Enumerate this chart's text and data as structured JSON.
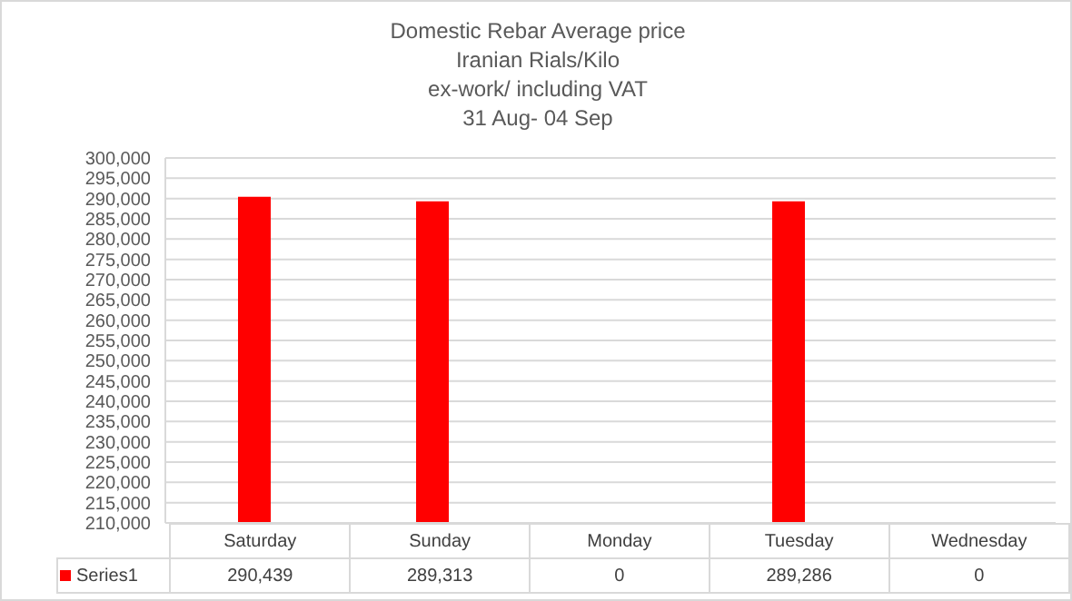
{
  "chart_data": {
    "type": "bar",
    "title": "Domestic Rebar Average  price",
    "subtitle": "Iranian Rials/Kilo\nex-work/ including VAT\n31 Aug- 04 Sep",
    "categories": [
      "Saturday",
      "Sunday",
      "Monday",
      "Tuesday",
      "Wednesday"
    ],
    "series": [
      {
        "name": "Series1",
        "color": "#ff0000",
        "values": [
          290439,
          289313,
          null,
          289286,
          null
        ],
        "value_labels": [
          "290,439",
          "289,313",
          "0",
          "289,286",
          "0"
        ]
      }
    ],
    "ylim": [
      210000,
      300000
    ],
    "yticks": [
      {
        "value": 210000,
        "label": "210,000"
      },
      {
        "value": 215000,
        "label": "215,000"
      },
      {
        "value": 220000,
        "label": "220,000"
      },
      {
        "value": 225000,
        "label": "225,000"
      },
      {
        "value": 230000,
        "label": "230,000"
      },
      {
        "value": 235000,
        "label": "235,000"
      },
      {
        "value": 240000,
        "label": "240,000"
      },
      {
        "value": 245000,
        "label": "245,000"
      },
      {
        "value": 250000,
        "label": "250,000"
      },
      {
        "value": 255000,
        "label": "255,000"
      },
      {
        "value": 260000,
        "label": "260,000"
      },
      {
        "value": 265000,
        "label": "265,000"
      },
      {
        "value": 270000,
        "label": "270,000"
      },
      {
        "value": 275000,
        "label": "275,000"
      },
      {
        "value": 280000,
        "label": "280,000"
      },
      {
        "value": 285000,
        "label": "285,000"
      },
      {
        "value": 290000,
        "label": "290,000"
      },
      {
        "value": 295000,
        "label": "295,000"
      },
      {
        "value": 300000,
        "label": "300,000"
      }
    ],
    "grid": "y",
    "legend": "bottom"
  }
}
